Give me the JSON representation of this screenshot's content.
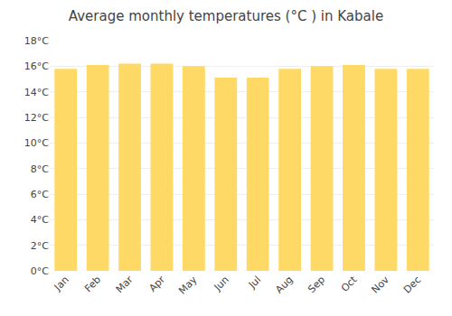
{
  "chart_data": {
    "type": "bar",
    "title": "Average monthly temperatures (°C ) in Kabale",
    "categories": [
      "Jan",
      "Feb",
      "Mar",
      "Apr",
      "May",
      "Jun",
      "Jul",
      "Aug",
      "Sep",
      "Oct",
      "Nov",
      "Dec"
    ],
    "values": [
      15.8,
      16.1,
      16.2,
      16.2,
      16.0,
      15.1,
      15.1,
      15.8,
      16.0,
      16.1,
      15.8,
      15.8
    ],
    "color": "#FFD966",
    "ylim": [
      0,
      18
    ],
    "yticks": [
      {
        "value": 0,
        "label": "0°C"
      },
      {
        "value": 2,
        "label": "2°C"
      },
      {
        "value": 4,
        "label": "4°C"
      },
      {
        "value": 6,
        "label": "6°C"
      },
      {
        "value": 8,
        "label": "8°C"
      },
      {
        "value": 10,
        "label": "10°C"
      },
      {
        "value": 12,
        "label": "12°C"
      },
      {
        "value": 14,
        "label": "14°C"
      },
      {
        "value": 16,
        "label": "16°C"
      },
      {
        "value": 18,
        "label": "18°C"
      }
    ],
    "grid": true
  }
}
